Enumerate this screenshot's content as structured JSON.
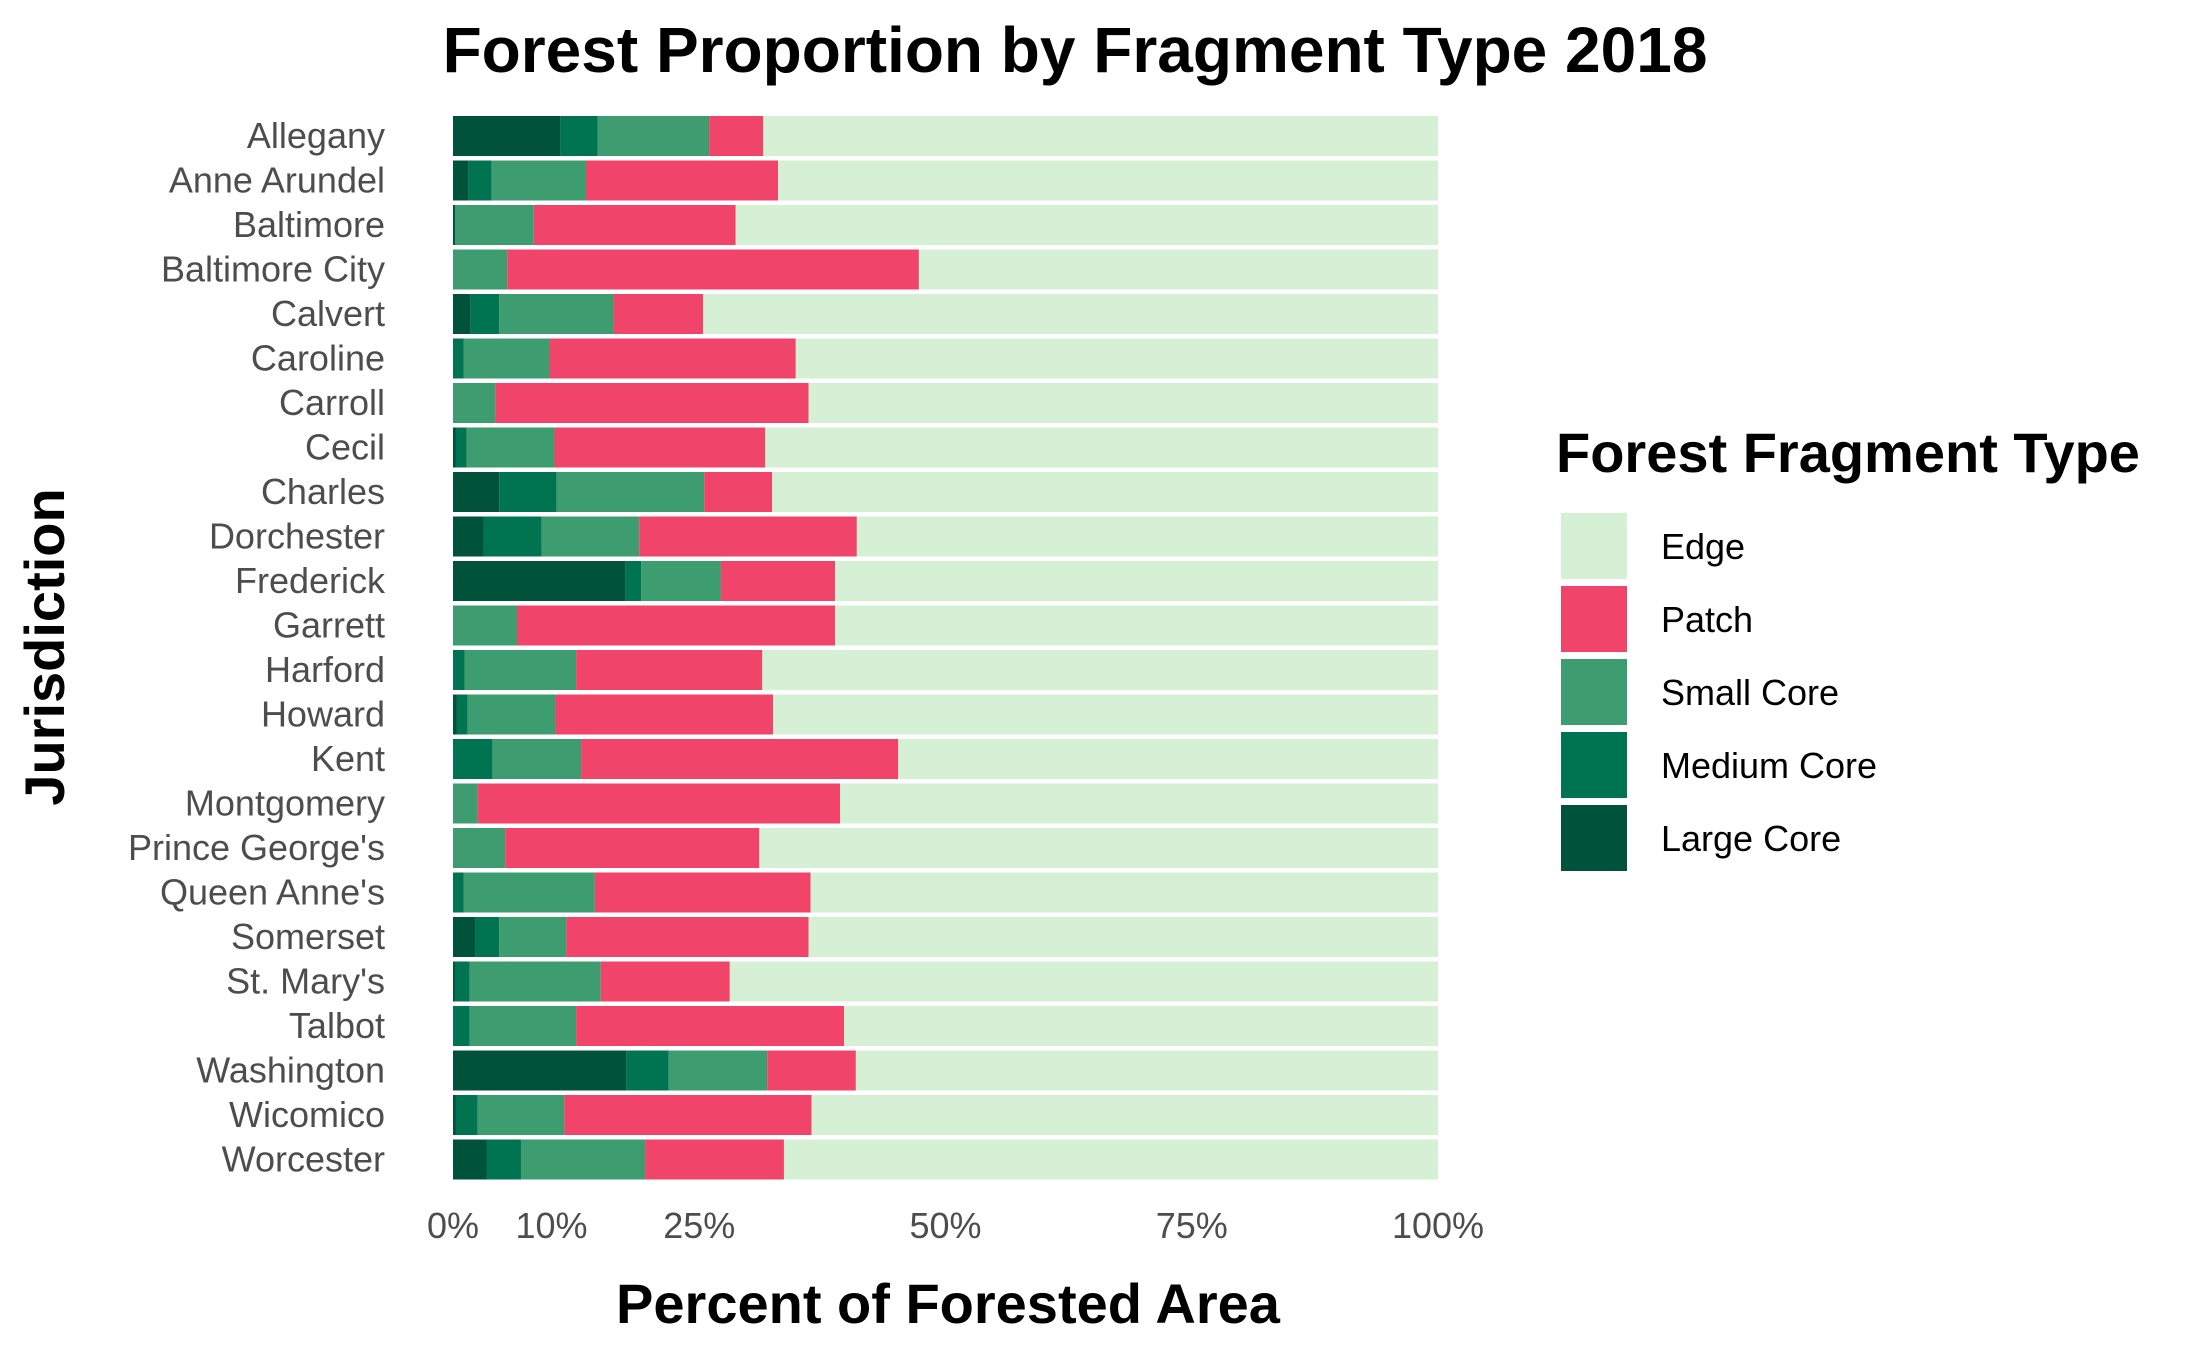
{
  "chart_data": {
    "type": "bar",
    "orientation": "horizontal",
    "stacked": true,
    "title": "Forest Proportion by Fragment Type 2018",
    "xlabel": "Percent of Forested Area",
    "ylabel": "Jurisdiction",
    "xlim": [
      0,
      100
    ],
    "x_tick_labels": [
      "0%",
      "10%",
      "25%",
      "50%",
      "75%",
      "100%"
    ],
    "x_tick_values": [
      0,
      10,
      25,
      50,
      75,
      100
    ],
    "categories": [
      "Allegany",
      "Anne Arundel",
      "Baltimore",
      "Baltimore City",
      "Calvert",
      "Caroline",
      "Carroll",
      "Cecil",
      "Charles",
      "Dorchester",
      "Frederick",
      "Garrett",
      "Harford",
      "Howard",
      "Kent",
      "Montgomery",
      "Prince George's",
      "Queen Anne's",
      "Somerset",
      "St. Mary's",
      "Talbot",
      "Washington",
      "Wicomico",
      "Worcester"
    ],
    "legend_title": "Forest Fragment Type",
    "legend_position": "right",
    "grid": false,
    "series": [
      {
        "name": "Large Core",
        "color": "#00533a",
        "values": [
          10.9,
          1.6,
          0.2,
          0,
          1.8,
          0,
          0,
          0.3,
          4.7,
          3.1,
          17.5,
          0,
          0,
          0.4,
          0,
          0,
          0,
          0,
          2.3,
          0.2,
          0,
          17.6,
          0.3,
          3.4
        ]
      },
      {
        "name": "Medium Core",
        "color": "#007350",
        "values": [
          3.8,
          2.3,
          0,
          0,
          2.9,
          1.1,
          0,
          1.1,
          5.8,
          5.9,
          1.6,
          0,
          1.2,
          1.1,
          4.0,
          0,
          0,
          1.1,
          2.4,
          1.5,
          1.7,
          4.3,
          2.2,
          3.5
        ]
      },
      {
        "name": "Small Core",
        "color": "#3d9c70",
        "values": [
          11.3,
          9.6,
          8.0,
          5.5,
          11.6,
          8.7,
          4.3,
          8.9,
          15.0,
          9.9,
          8.1,
          6.5,
          11.3,
          8.9,
          9.0,
          2.5,
          5.3,
          13.3,
          6.8,
          13.3,
          10.8,
          10.0,
          8.8,
          12.6
        ]
      },
      {
        "name": "Patch",
        "color": "#f0446a",
        "values": [
          5.5,
          19.5,
          20.5,
          41.8,
          9.1,
          25.0,
          31.8,
          21.4,
          6.9,
          22.1,
          11.6,
          32.3,
          18.9,
          22.1,
          32.2,
          36.8,
          25.8,
          21.9,
          24.6,
          13.1,
          27.2,
          9.0,
          25.1,
          14.1
        ]
      },
      {
        "name": "Edge",
        "color": "#d6f0d5",
        "values": [
          68.5,
          67.0,
          71.3,
          52.7,
          74.6,
          65.2,
          63.9,
          68.3,
          67.6,
          59.0,
          61.2,
          61.2,
          68.6,
          67.5,
          54.8,
          60.7,
          68.9,
          63.7,
          63.9,
          71.9,
          60.3,
          59.1,
          63.6,
          66.4
        ]
      }
    ],
    "legend_order": [
      "Edge",
      "Patch",
      "Small Core",
      "Medium Core",
      "Large Core"
    ]
  }
}
